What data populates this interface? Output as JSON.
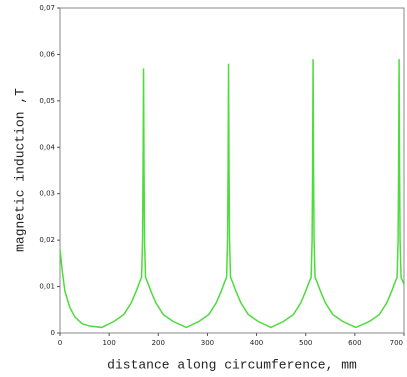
{
  "chart_data": {
    "type": "line",
    "x_label": "distance along circumference, mm",
    "y_label": "magnetic induction ,T",
    "xlim": [
      0,
      700
    ],
    "xticks": [
      0,
      100,
      200,
      300,
      400,
      500,
      600,
      700
    ],
    "ylim": [
      0,
      0.07
    ],
    "yticks": [
      0,
      {
        "value": 0.01,
        "label": "0,01"
      },
      {
        "value": 0.02,
        "label": "0,02"
      },
      {
        "value": 0.03,
        "label": "0,03"
      },
      {
        "value": 0.04,
        "label": "0,04"
      },
      {
        "value": 0.05,
        "label": "0,05"
      },
      {
        "value": 0.06,
        "label": "0,06"
      },
      {
        "value": 0.07,
        "label": "0,07"
      }
    ],
    "series": [
      {
        "color": "#4ddc3c",
        "x": [
          0,
          5,
          10,
          20,
          30,
          45,
          60,
          85,
          110,
          130,
          145,
          155,
          162,
          166,
          168,
          169,
          170,
          171,
          172,
          174,
          178,
          185,
          195,
          210,
          230,
          257,
          283,
          303,
          318,
          328,
          335,
          339,
          341,
          342,
          343,
          344,
          345,
          347,
          351,
          358,
          368,
          383,
          403,
          429,
          455,
          475,
          490,
          500,
          507,
          511,
          513,
          514,
          515,
          516,
          517,
          519,
          523,
          530,
          540,
          555,
          575,
          602,
          630,
          650,
          665,
          675,
          682,
          686,
          688,
          689,
          690,
          691,
          692,
          694,
          698,
          700
        ],
        "values": [
          0.018,
          0.013,
          0.009,
          0.0055,
          0.0035,
          0.002,
          0.0015,
          0.0012,
          0.0025,
          0.004,
          0.0065,
          0.009,
          0.011,
          0.012,
          0.02,
          0.035,
          0.057,
          0.035,
          0.02,
          0.012,
          0.011,
          0.009,
          0.0065,
          0.004,
          0.0025,
          0.0012,
          0.0025,
          0.004,
          0.0065,
          0.009,
          0.011,
          0.012,
          0.02,
          0.035,
          0.058,
          0.035,
          0.02,
          0.012,
          0.011,
          0.009,
          0.0065,
          0.004,
          0.0025,
          0.0012,
          0.0025,
          0.004,
          0.0065,
          0.009,
          0.011,
          0.012,
          0.02,
          0.035,
          0.059,
          0.035,
          0.02,
          0.012,
          0.011,
          0.009,
          0.0065,
          0.004,
          0.0025,
          0.0012,
          0.0025,
          0.004,
          0.0065,
          0.009,
          0.011,
          0.012,
          0.02,
          0.035,
          0.059,
          0.035,
          0.02,
          0.012,
          0.011,
          0.0105
        ]
      }
    ]
  }
}
